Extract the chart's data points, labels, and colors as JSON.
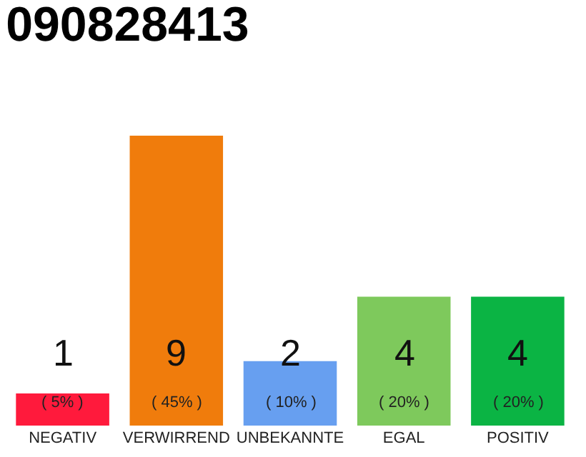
{
  "chart_data": {
    "type": "bar",
    "title": "090828413",
    "categories": [
      "NEGATIV",
      "VERWIRREND",
      "UNBEKANNTE",
      "EGAL",
      "POSITIV"
    ],
    "values": [
      1,
      9,
      2,
      4,
      4
    ],
    "colors": [
      "#ff1a3c",
      "#f07c0c",
      "#679ff0",
      "#7ec95c",
      "#0bb444"
    ],
    "value_labels": [
      "1\n( 5% )",
      "9\n( 45% )",
      "2\n( 10% )",
      "4\n( 20% )",
      "4\n( 20% )"
    ],
    "ylim": [
      0,
      9
    ]
  }
}
